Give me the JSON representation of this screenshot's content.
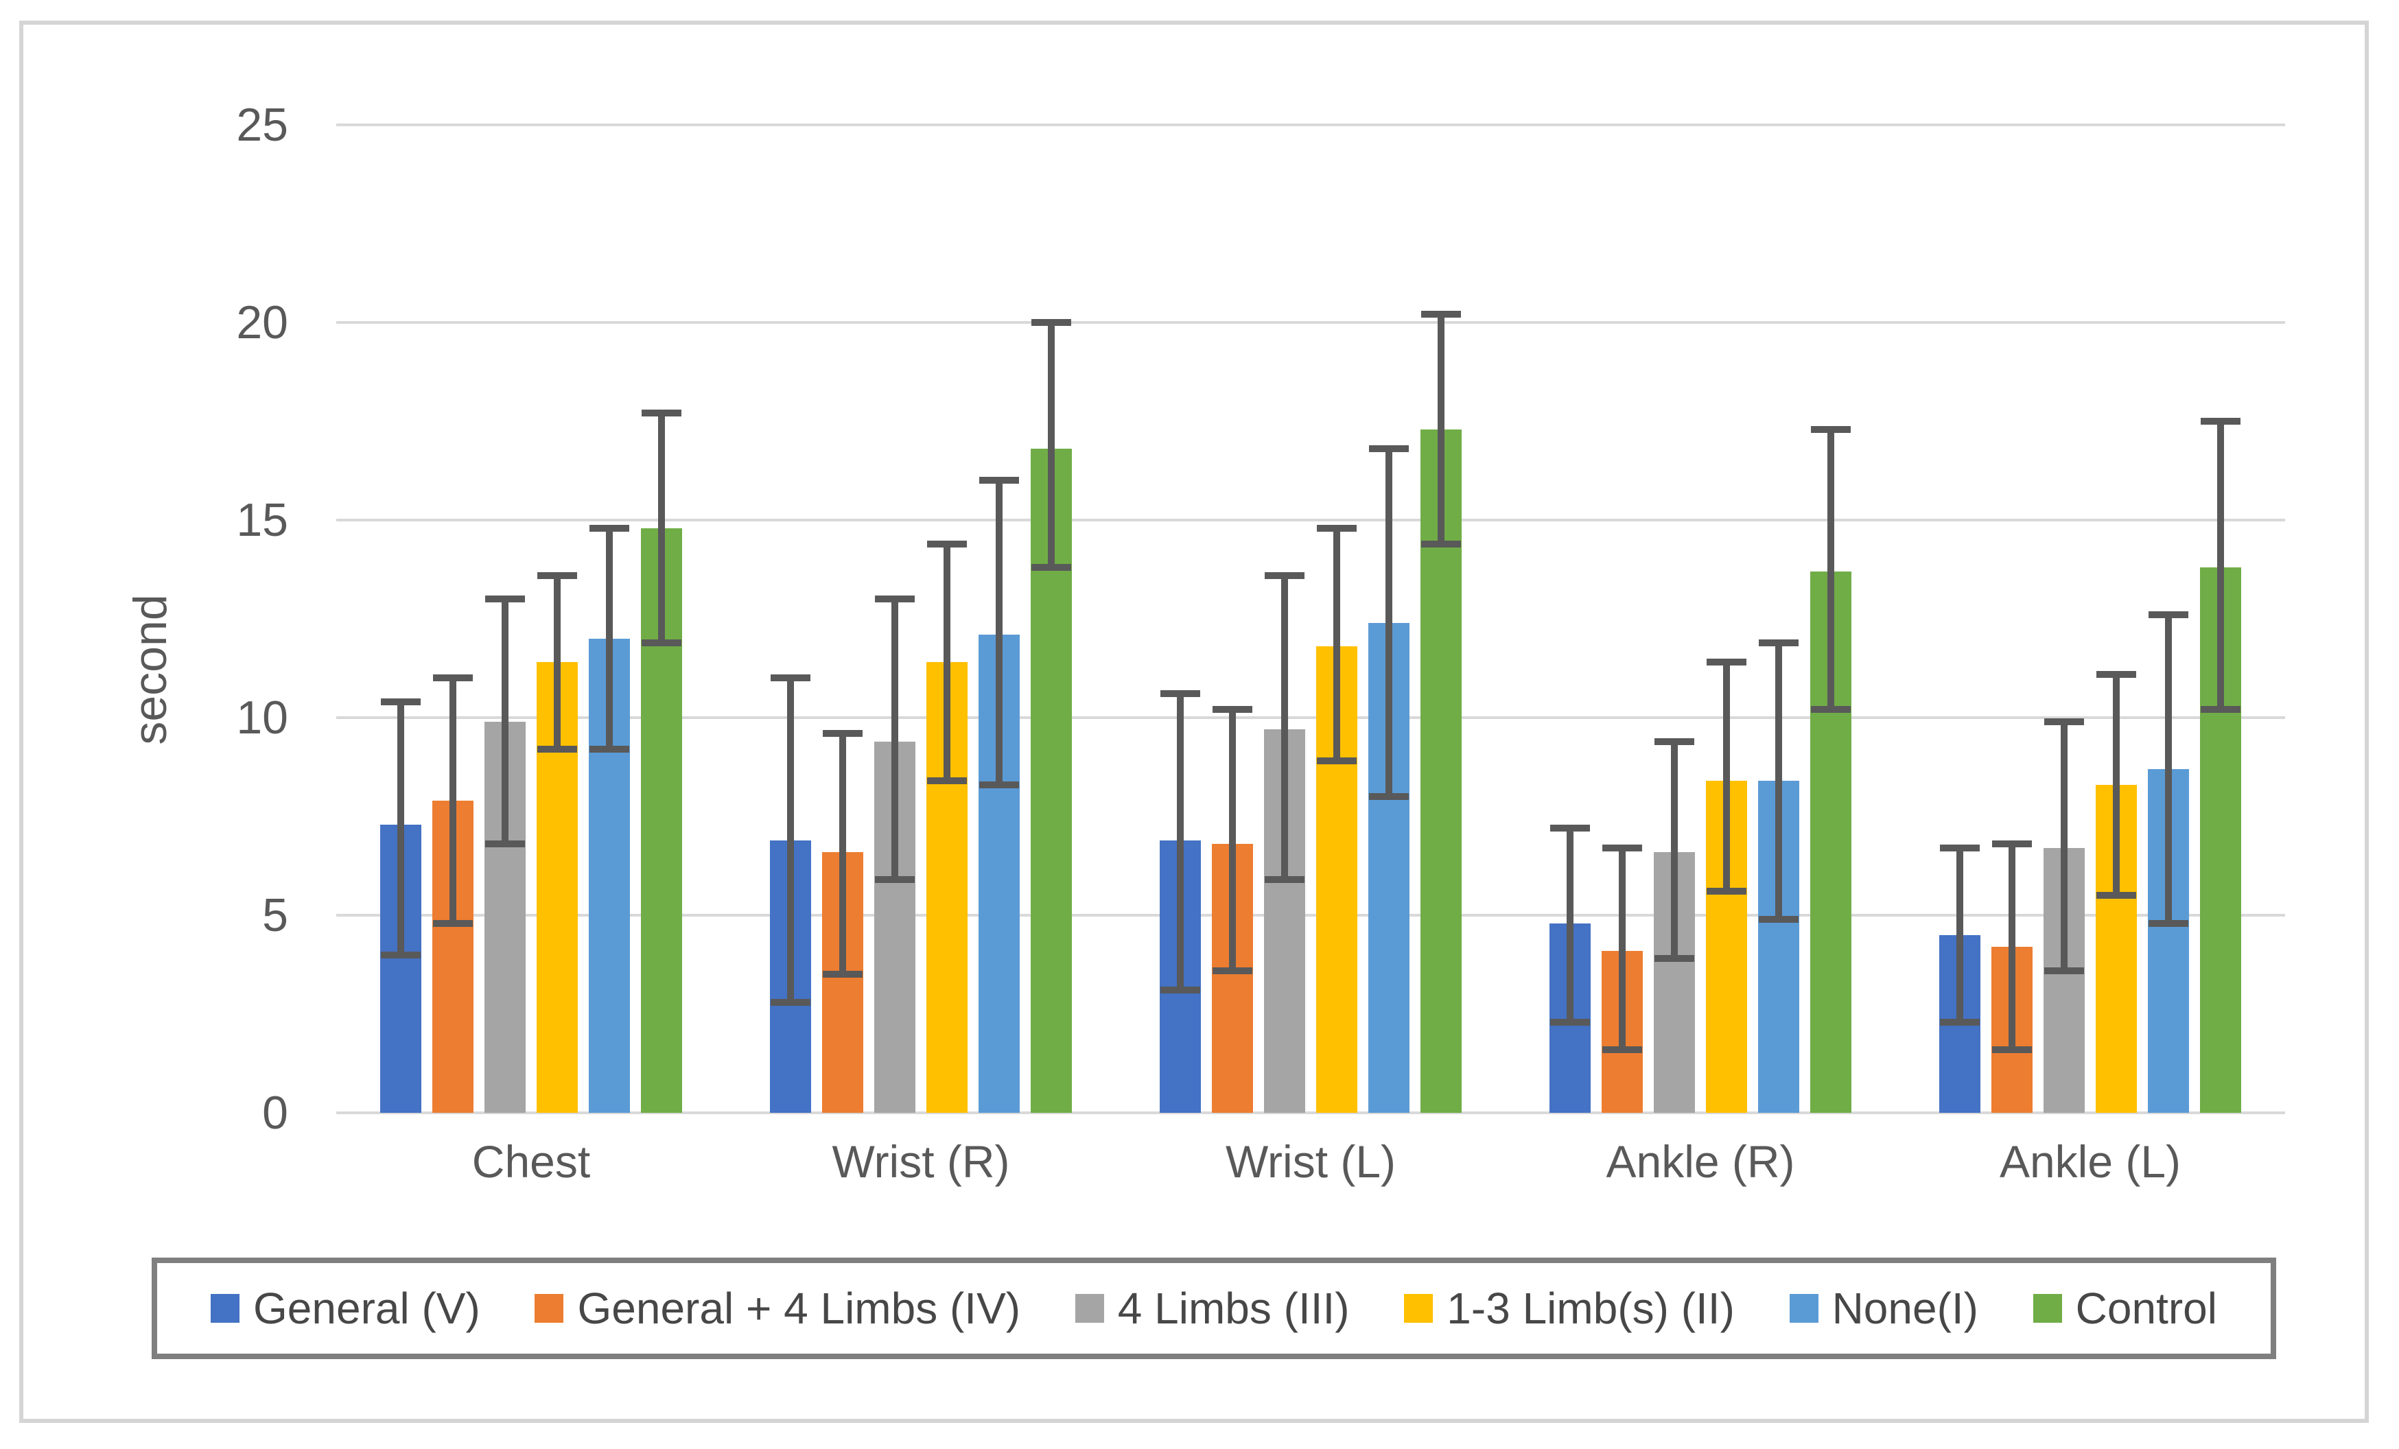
{
  "chart_data": {
    "type": "bar",
    "title": "",
    "y_axis_title": "second",
    "ylabel": "second",
    "xlabel": "",
    "ylim": [
      0,
      25
    ],
    "y_ticks": [
      0,
      5,
      10,
      15,
      20,
      25
    ],
    "grid": true,
    "legend_position": "bottom",
    "error_bars": true,
    "categories": [
      "Chest",
      "Wrist (R)",
      "Wrist (L)",
      "Ankle (R)",
      "Ankle (L)"
    ],
    "series": [
      {
        "name": "General (V)",
        "color": "#4472C4",
        "values": [
          7.3,
          6.9,
          6.9,
          4.8,
          4.5
        ],
        "err_low": [
          4.0,
          2.8,
          3.1,
          2.3,
          2.3
        ],
        "err_high": [
          10.4,
          11.0,
          10.6,
          7.2,
          6.7
        ]
      },
      {
        "name": "General + 4 Limbs (IV)",
        "color": "#ED7D31",
        "values": [
          7.9,
          6.6,
          6.8,
          4.1,
          4.2
        ],
        "err_low": [
          4.8,
          3.5,
          3.6,
          1.6,
          1.6
        ],
        "err_high": [
          11.0,
          9.6,
          10.2,
          6.7,
          6.8
        ]
      },
      {
        "name": "4 Limbs (III)",
        "color": "#A5A5A5",
        "values": [
          9.9,
          9.4,
          9.7,
          6.6,
          6.7
        ],
        "err_low": [
          6.8,
          5.9,
          5.9,
          3.9,
          3.6
        ],
        "err_high": [
          13.0,
          13.0,
          13.6,
          9.4,
          9.9
        ]
      },
      {
        "name": "1-3 Limb(s) (II)",
        "color": "#FFC000",
        "values": [
          11.4,
          11.4,
          11.8,
          8.4,
          8.3
        ],
        "err_low": [
          9.2,
          8.4,
          8.9,
          5.6,
          5.5
        ],
        "err_high": [
          13.6,
          14.4,
          14.8,
          11.4,
          11.1
        ]
      },
      {
        "name": "None(I)",
        "color": "#5B9BD5",
        "values": [
          12.0,
          12.1,
          12.4,
          8.4,
          8.7
        ],
        "err_low": [
          9.2,
          8.3,
          8.0,
          4.9,
          4.8
        ],
        "err_high": [
          14.8,
          16.0,
          16.8,
          11.9,
          12.6
        ]
      },
      {
        "name": "Control",
        "color": "#70AD47",
        "values": [
          14.8,
          16.8,
          17.3,
          13.7,
          13.8
        ],
        "err_low": [
          11.9,
          13.8,
          14.4,
          10.2,
          10.2
        ],
        "err_high": [
          17.7,
          20.0,
          20.2,
          17.3,
          17.5
        ]
      }
    ],
    "colors": {
      "grid": "#d9d9d9",
      "axis_text": "#595959",
      "error_bar": "#595959",
      "legend_border": "#7f7f7f",
      "frame_border": "#d5d5d5",
      "background": "#ffffff"
    }
  }
}
